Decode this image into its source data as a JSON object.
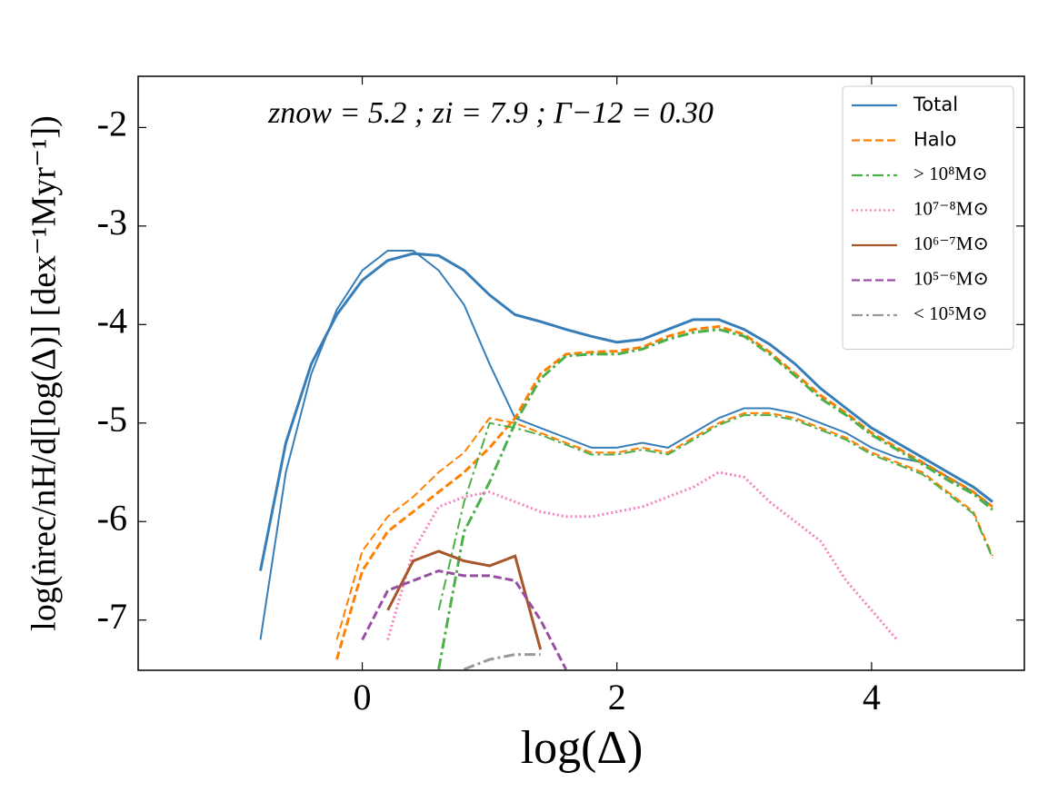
{
  "chart_data": {
    "type": "line",
    "annotation": "znow = 5.2 ; zi = 7.9 ; Γ−12 = 0.30",
    "x_label": "log(Δ)",
    "y_label": "log(ṅrec/nH/d[log(Δ)] [dex⁻¹Myr⁻¹])",
    "x": [
      -1.0,
      -0.8,
      -0.6,
      -0.4,
      -0.2,
      0,
      0.2,
      0.4,
      0.6,
      0.8,
      1.0,
      1.2,
      1.4,
      1.6,
      1.8,
      2.0,
      2.2,
      2.4,
      2.6,
      2.8,
      3.0,
      3.2,
      3.4,
      3.6,
      3.8,
      4.0,
      4.2,
      4.4,
      4.6,
      4.8,
      4.95
    ],
    "xlim": [
      -1.76,
      5.2
    ],
    "xticks": [
      0,
      2,
      4
    ],
    "ylim": [
      -7.51,
      -1.48
    ],
    "yticks": [
      -7,
      -6,
      -5,
      -4,
      -3,
      -2
    ],
    "legend": "upper right",
    "series": [
      {
        "name": "Total",
        "color": "#377eb8",
        "dash": "solid",
        "values": [
          null,
          -6.5,
          -5.2,
          -4.4,
          -3.9,
          -3.55,
          -3.35,
          -3.28,
          -3.3,
          -3.45,
          -3.7,
          -3.9,
          -3.97,
          -4.05,
          -4.12,
          -4.18,
          -4.15,
          -4.05,
          -3.95,
          -3.95,
          -4.05,
          -4.2,
          -4.4,
          -4.65,
          -4.85,
          -5.05,
          -5.2,
          -5.35,
          -5.5,
          -5.65,
          -5.8
        ],
        "thin_values": [
          null,
          -7.2,
          -5.5,
          -4.5,
          -3.85,
          -3.45,
          -3.25,
          -3.25,
          -3.45,
          -3.8,
          -4.4,
          -4.95,
          -5.05,
          -5.15,
          -5.25,
          -5.25,
          -5.2,
          -5.25,
          -5.1,
          -4.95,
          -4.85,
          -4.85,
          -4.9,
          -5.0,
          -5.1,
          -5.25,
          -5.35,
          -5.4,
          -5.55,
          -5.7,
          -5.85
        ]
      },
      {
        "name": "Halo",
        "color": "#ff7f00",
        "dash": "dashed",
        "values": [
          null,
          null,
          null,
          null,
          -7.4,
          -6.5,
          -6.1,
          -5.9,
          -5.7,
          -5.5,
          -5.25,
          -4.95,
          -4.5,
          -4.3,
          -4.28,
          -4.27,
          -4.23,
          -4.12,
          -4.05,
          -4.02,
          -4.1,
          -4.28,
          -4.5,
          -4.72,
          -4.9,
          -5.1,
          -5.25,
          -5.4,
          -5.55,
          -5.7,
          -5.85
        ],
        "thin_values": [
          null,
          null,
          null,
          null,
          -7.2,
          -6.3,
          -5.95,
          -5.75,
          -5.5,
          -5.3,
          -4.95,
          -5.0,
          -5.1,
          -5.2,
          -5.3,
          -5.3,
          -5.25,
          -5.3,
          -5.15,
          -5.0,
          -4.9,
          -4.9,
          -4.95,
          -5.05,
          -5.15,
          -5.3,
          -5.4,
          -5.5,
          -5.7,
          -5.9,
          -6.35
        ]
      },
      {
        "name": "> 10⁸M⊙",
        "color": "#4daf4a",
        "dash": "dashdot",
        "values": [
          null,
          null,
          null,
          null,
          null,
          null,
          null,
          null,
          -7.5,
          -6.1,
          -5.6,
          -5.0,
          -4.55,
          -4.32,
          -4.3,
          -4.3,
          -4.25,
          -4.15,
          -4.08,
          -4.05,
          -4.12,
          -4.3,
          -4.52,
          -4.75,
          -4.92,
          -5.12,
          -5.27,
          -5.42,
          -5.58,
          -5.72,
          -5.88
        ],
        "thin_values": [
          null,
          null,
          null,
          null,
          null,
          null,
          null,
          null,
          -6.9,
          -5.8,
          -5.0,
          -5.05,
          -5.12,
          -5.22,
          -5.32,
          -5.32,
          -5.27,
          -5.32,
          -5.17,
          -5.02,
          -4.92,
          -4.92,
          -4.97,
          -5.07,
          -5.17,
          -5.32,
          -5.42,
          -5.52,
          -5.72,
          -5.92,
          -6.37
        ]
      },
      {
        "name": "10⁷⁻⁸M⊙",
        "color": "#f781bf",
        "dash": "dotted",
        "values": [
          null,
          null,
          null,
          null,
          null,
          null,
          -7.2,
          -6.3,
          -5.85,
          -5.75,
          -5.7,
          -5.8,
          -5.9,
          -5.95,
          -5.95,
          -5.9,
          -5.85,
          -5.75,
          -5.65,
          -5.5,
          -5.55,
          -5.8,
          -6.0,
          -6.2,
          -6.6,
          -6.9,
          -7.2,
          null,
          null,
          null,
          null
        ]
      },
      {
        "name": "10⁶⁻⁷M⊙",
        "color": "#a65628",
        "dash": "solid",
        "values": [
          null,
          null,
          null,
          null,
          null,
          null,
          -6.9,
          -6.4,
          -6.3,
          -6.4,
          -6.45,
          -6.35,
          -7.3,
          null,
          null,
          null,
          null,
          null,
          null,
          null,
          null,
          null,
          null,
          null,
          null,
          null,
          null,
          null,
          null,
          null,
          null
        ]
      },
      {
        "name": "10⁵⁻⁶M⊙",
        "color": "#984ea3",
        "dash": "dashed",
        "values": [
          null,
          null,
          null,
          null,
          null,
          -7.2,
          -6.7,
          -6.6,
          -6.5,
          -6.55,
          -6.55,
          -6.6,
          -7.0,
          -7.5,
          null,
          null,
          null,
          null,
          null,
          null,
          null,
          null,
          null,
          null,
          null,
          null,
          null,
          null,
          null,
          null,
          null
        ]
      },
      {
        "name": "< 10⁵M⊙",
        "color": "#999999",
        "dash": "dashdot",
        "values": [
          null,
          null,
          null,
          null,
          null,
          null,
          null,
          null,
          null,
          -7.5,
          -7.4,
          -7.35,
          -7.35,
          null,
          null,
          null,
          null,
          null,
          null,
          null,
          null,
          null,
          null,
          null,
          null,
          null,
          null,
          null,
          null,
          null,
          null
        ]
      }
    ]
  }
}
